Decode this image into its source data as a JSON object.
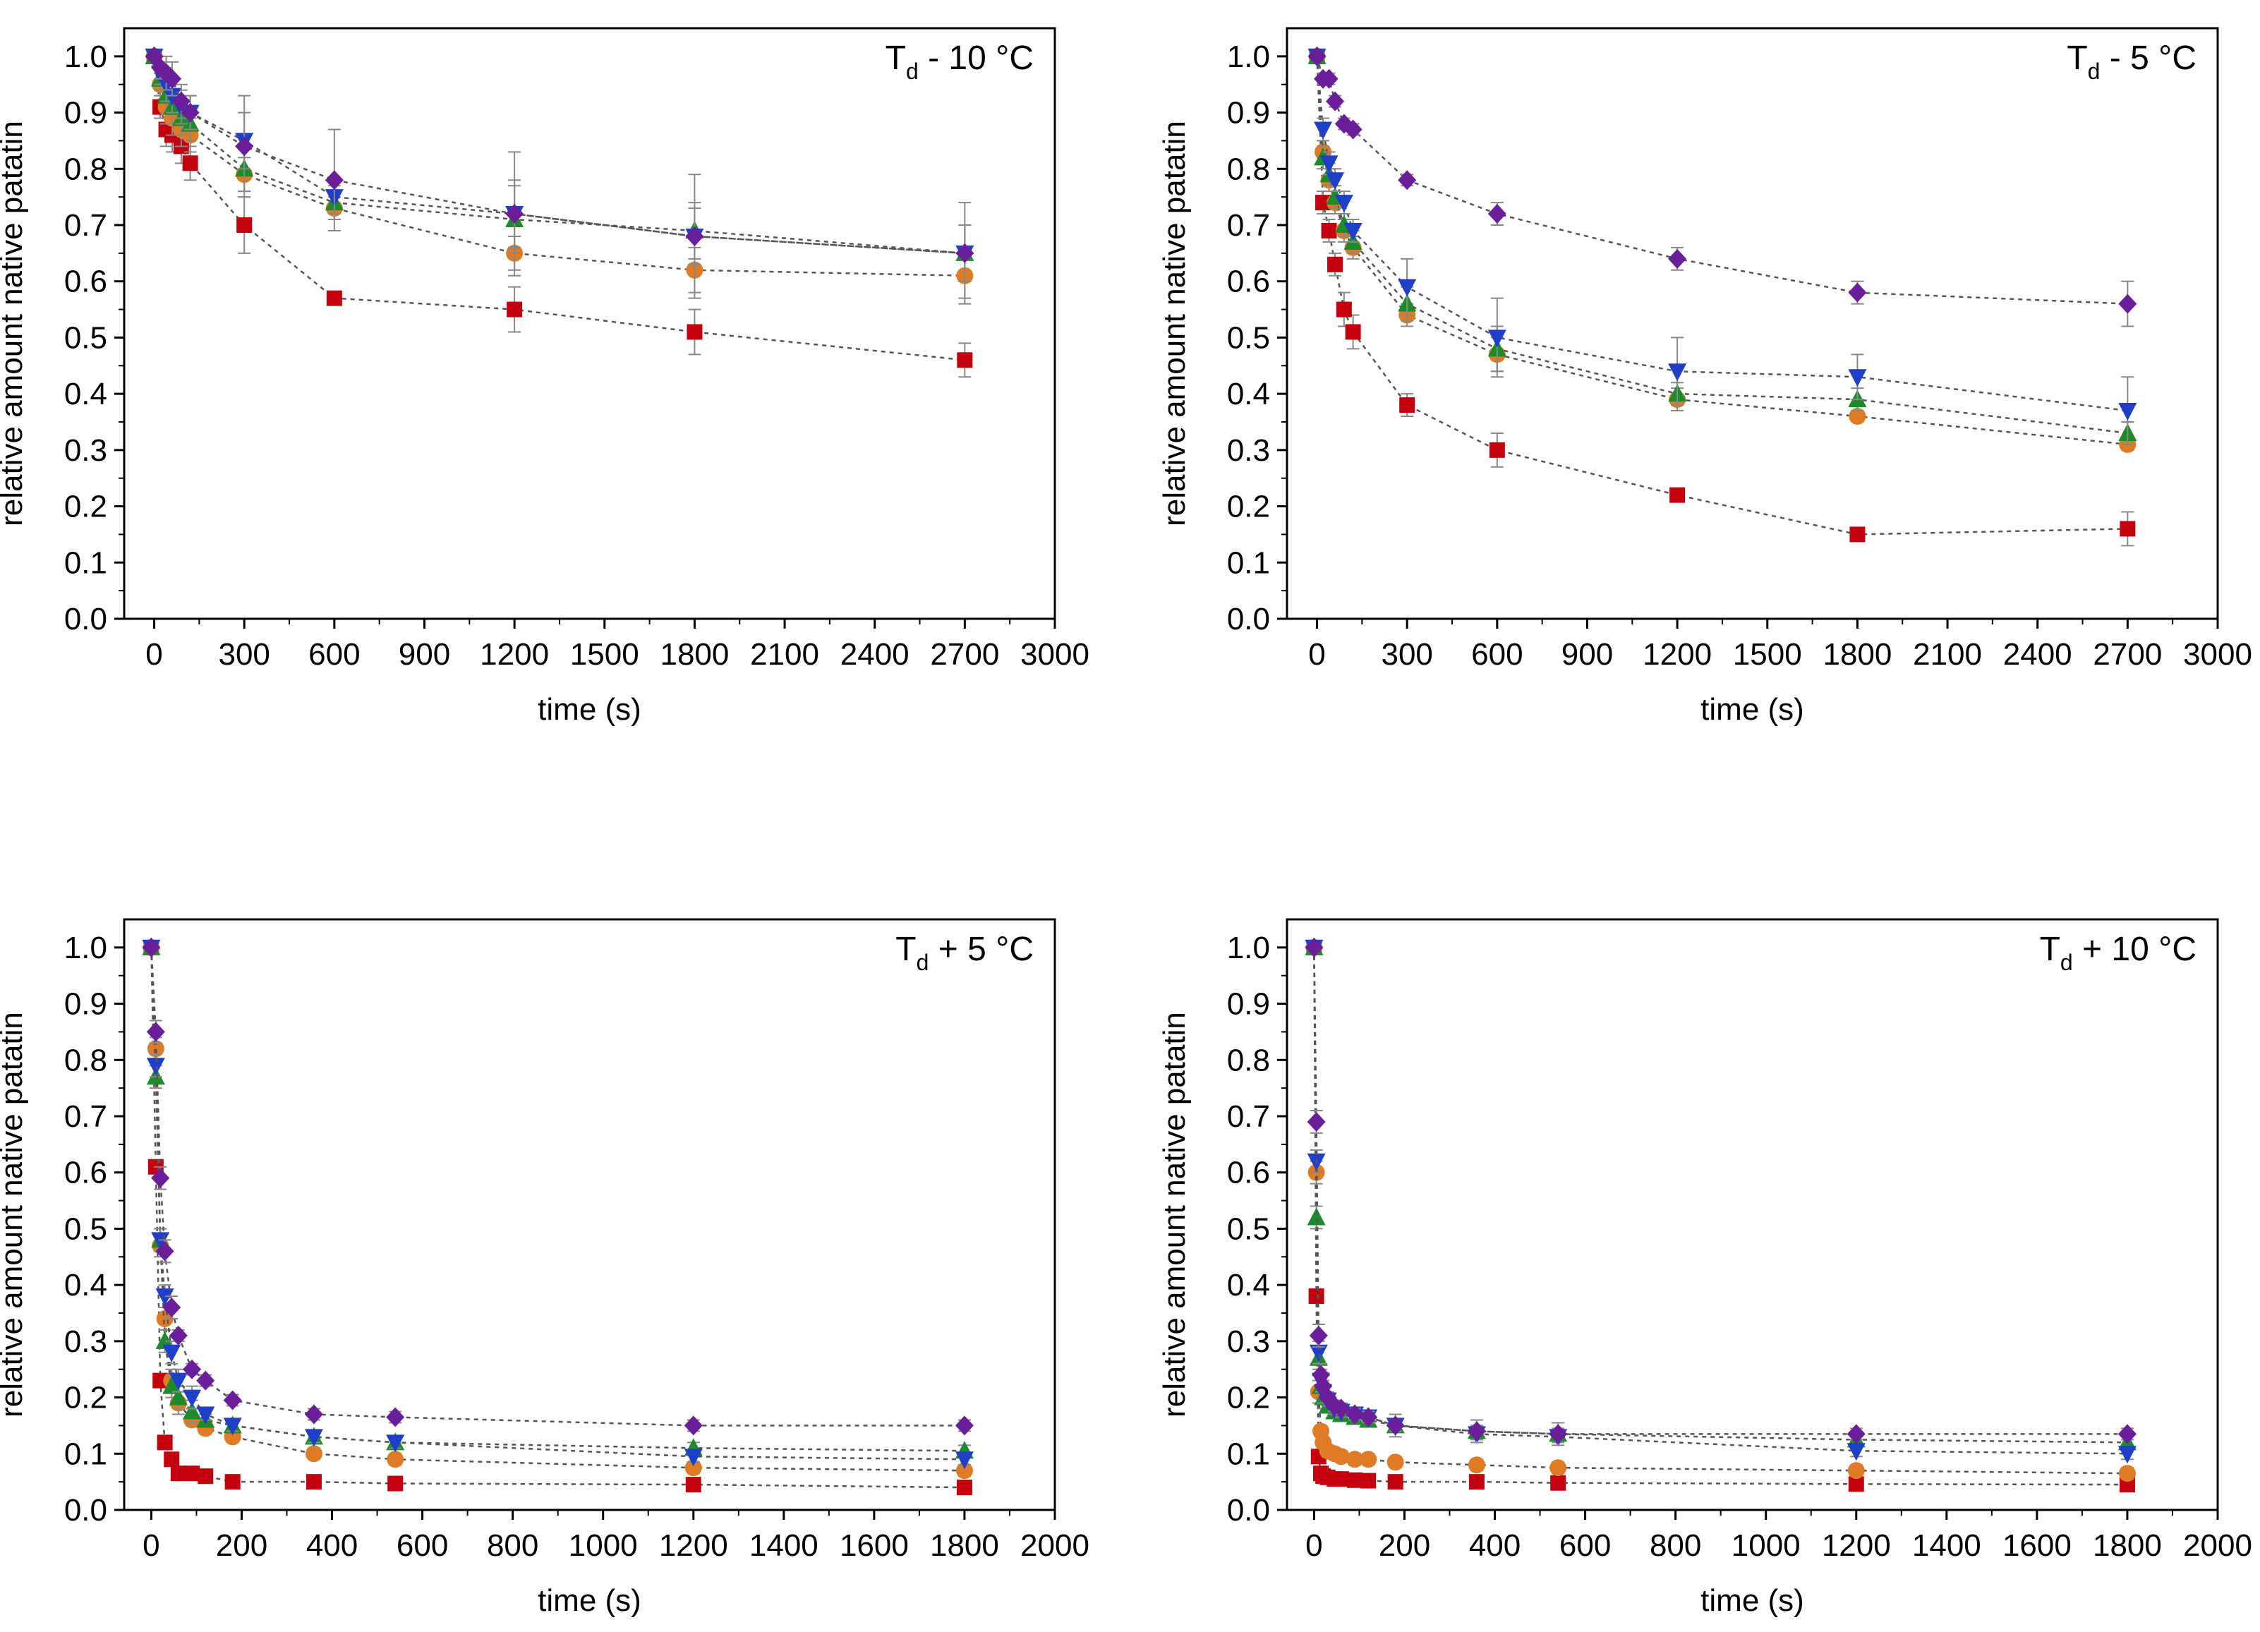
{
  "colors": {
    "red": "#c4000f",
    "orange": "#e07b25",
    "green": "#1d8a2b",
    "blue": "#1f3fc8",
    "purple": "#6a1e9a"
  },
  "chart_data": [
    {
      "type": "scatter",
      "title_main": "T",
      "title_sub": "d",
      "title_rest": " - 10 °C",
      "xlabel": "time (s)",
      "ylabel": "relative amount native patatin",
      "xlim": [
        -100,
        3000
      ],
      "ylim": [
        0,
        1.05
      ],
      "xticks": [
        0,
        300,
        600,
        900,
        1200,
        1500,
        1800,
        2100,
        2400,
        2700,
        3000
      ],
      "xtick_labels": [
        "0",
        "300",
        "600",
        "900",
        "1200",
        "1500",
        "1800",
        "2100",
        "2400",
        "2700",
        "3000"
      ],
      "yticks": [
        0,
        0.1,
        0.2,
        0.3,
        0.4,
        0.5,
        0.6,
        0.7,
        0.8,
        0.9,
        1.0
      ],
      "ytick_labels": [
        "0.0",
        "0.1",
        "0.2",
        "0.3",
        "0.4",
        "0.5",
        "0.6",
        "0.7",
        "0.8",
        "0.9",
        "1.0"
      ],
      "x": [
        0,
        20,
        40,
        60,
        90,
        120,
        300,
        600,
        1200,
        1800,
        2700
      ],
      "series": [
        {
          "color": "red",
          "marker": "square",
          "values": [
            1.0,
            0.91,
            0.87,
            0.86,
            0.84,
            0.81,
            0.7,
            0.57,
            0.55,
            0.51,
            0.46
          ],
          "err": [
            0,
            0.02,
            0.03,
            0.03,
            0.03,
            0.03,
            0.05,
            0.01,
            0.04,
            0.04,
            0.03
          ]
        },
        {
          "color": "orange",
          "marker": "circle",
          "values": [
            1.0,
            0.95,
            0.91,
            0.89,
            0.87,
            0.86,
            0.79,
            0.73,
            0.65,
            0.62,
            0.61
          ],
          "err": [
            0,
            0.02,
            0.03,
            0.03,
            0.03,
            0.03,
            0.03,
            0.02,
            0.03,
            0.04,
            0.04
          ]
        },
        {
          "color": "green",
          "marker": "triangle-up",
          "values": [
            1.0,
            0.96,
            0.93,
            0.91,
            0.89,
            0.88,
            0.8,
            0.74,
            0.71,
            0.69,
            0.65
          ],
          "err": [
            0,
            0.02,
            0.03,
            0.03,
            0.03,
            0.03,
            0.04,
            0.03,
            0.06,
            0.05,
            0.05
          ]
        },
        {
          "color": "blue",
          "marker": "triangle-down",
          "values": [
            1.0,
            0.97,
            0.95,
            0.93,
            0.91,
            0.9,
            0.85,
            0.75,
            0.72,
            0.68,
            0.65
          ],
          "err": [
            0,
            0.02,
            0.03,
            0.03,
            0.03,
            0.03,
            0.05,
            0.03,
            0.06,
            0.05,
            0.05
          ]
        },
        {
          "color": "purple",
          "marker": "diamond",
          "values": [
            1.0,
            0.98,
            0.97,
            0.96,
            0.92,
            0.9,
            0.84,
            0.78,
            0.72,
            0.68,
            0.65
          ],
          "err": [
            0,
            0.02,
            0.03,
            0.03,
            0.03,
            0.03,
            0.09,
            0.09,
            0.11,
            0.11,
            0.09
          ]
        }
      ]
    },
    {
      "type": "scatter",
      "title_main": "T",
      "title_sub": "d",
      "title_rest": " - 5 °C",
      "xlabel": "time (s)",
      "ylabel": "relative amount native patatin",
      "xlim": [
        -100,
        3000
      ],
      "ylim": [
        0,
        1.05
      ],
      "xticks": [
        0,
        300,
        600,
        900,
        1200,
        1500,
        1800,
        2100,
        2400,
        2700,
        3000
      ],
      "xtick_labels": [
        "0",
        "300",
        "600",
        "900",
        "1200",
        "1500",
        "1800",
        "2100",
        "2400",
        "2700",
        "3000"
      ],
      "yticks": [
        0,
        0.1,
        0.2,
        0.3,
        0.4,
        0.5,
        0.6,
        0.7,
        0.8,
        0.9,
        1.0
      ],
      "ytick_labels": [
        "0.0",
        "0.1",
        "0.2",
        "0.3",
        "0.4",
        "0.5",
        "0.6",
        "0.7",
        "0.8",
        "0.9",
        "1.0"
      ],
      "x": [
        0,
        20,
        40,
        60,
        90,
        120,
        300,
        600,
        1200,
        1800,
        2700
      ],
      "series": [
        {
          "color": "red",
          "marker": "square",
          "values": [
            1.0,
            0.74,
            0.69,
            0.63,
            0.55,
            0.51,
            0.38,
            0.3,
            0.22,
            0.15,
            0.16
          ],
          "err": [
            0,
            0.02,
            0.02,
            0.02,
            0.03,
            0.03,
            0.02,
            0.03,
            0.01,
            0.01,
            0.03
          ]
        },
        {
          "color": "orange",
          "marker": "circle",
          "values": [
            1.0,
            0.83,
            0.78,
            0.74,
            0.69,
            0.66,
            0.54,
            0.47,
            0.39,
            0.36,
            0.31
          ],
          "err": [
            0,
            0.02,
            0.02,
            0.02,
            0.02,
            0.02,
            0.02,
            0.03,
            0.02,
            0.01,
            0.01
          ]
        },
        {
          "color": "green",
          "marker": "triangle-up",
          "values": [
            1.0,
            0.82,
            0.79,
            0.75,
            0.7,
            0.67,
            0.56,
            0.48,
            0.4,
            0.39,
            0.33
          ],
          "err": [
            0,
            0.02,
            0.02,
            0.02,
            0.02,
            0.02,
            0.03,
            0.04,
            0.02,
            0.02,
            0.02
          ]
        },
        {
          "color": "blue",
          "marker": "triangle-down",
          "values": [
            1.0,
            0.87,
            0.81,
            0.78,
            0.74,
            0.69,
            0.59,
            0.5,
            0.44,
            0.43,
            0.37
          ],
          "err": [
            0,
            0.02,
            0.02,
            0.02,
            0.02,
            0.02,
            0.05,
            0.07,
            0.06,
            0.04,
            0.06
          ]
        },
        {
          "color": "purple",
          "marker": "diamond",
          "values": [
            1.0,
            0.96,
            0.96,
            0.92,
            0.88,
            0.87,
            0.78,
            0.72,
            0.64,
            0.58,
            0.56
          ],
          "err": [
            0,
            0.01,
            0.01,
            0.01,
            0.01,
            0.01,
            0.01,
            0.02,
            0.02,
            0.02,
            0.04
          ]
        }
      ]
    },
    {
      "type": "scatter",
      "title_main": "T",
      "title_sub": "d",
      "title_rest": " + 5 °C",
      "xlabel": "time (s)",
      "ylabel": "relative amount native patatin",
      "xlim": [
        -60,
        2000
      ],
      "ylim": [
        0,
        1.05
      ],
      "xticks": [
        0,
        200,
        400,
        600,
        800,
        1000,
        1200,
        1400,
        1600,
        1800,
        2000
      ],
      "xtick_labels": [
        "0",
        "200",
        "400",
        "600",
        "800",
        "1000",
        "1200",
        "1400",
        "1600",
        "1800",
        "2000"
      ],
      "yticks": [
        0,
        0.1,
        0.2,
        0.3,
        0.4,
        0.5,
        0.6,
        0.7,
        0.8,
        0.9,
        1.0
      ],
      "ytick_labels": [
        "0.0",
        "0.1",
        "0.2",
        "0.3",
        "0.4",
        "0.5",
        "0.6",
        "0.7",
        "0.8",
        "0.9",
        "1.0"
      ],
      "x": [
        0,
        10,
        20,
        30,
        45,
        60,
        90,
        120,
        180,
        360,
        540,
        1200,
        1800
      ],
      "series": [
        {
          "color": "red",
          "marker": "square",
          "values": [
            1.0,
            0.61,
            0.23,
            0.12,
            0.09,
            0.065,
            0.065,
            0.06,
            0.05,
            0.05,
            0.047,
            0.045,
            0.04
          ],
          "err": [
            0,
            0.01,
            0.01,
            0.01,
            0.01,
            0.005,
            0.005,
            0.005,
            0.005,
            0.005,
            0.005,
            0.005,
            0.005
          ]
        },
        {
          "color": "orange",
          "marker": "circle",
          "values": [
            1.0,
            0.82,
            0.47,
            0.34,
            0.23,
            0.19,
            0.16,
            0.145,
            0.13,
            0.1,
            0.09,
            0.075,
            0.07
          ],
          "err": [
            0,
            0.02,
            0.02,
            0.02,
            0.02,
            0.02,
            0.01,
            0.01,
            0.01,
            0.01,
            0.01,
            0.01,
            0.01
          ]
        },
        {
          "color": "green",
          "marker": "triangle-up",
          "values": [
            1.0,
            0.77,
            0.48,
            0.3,
            0.22,
            0.2,
            0.175,
            0.16,
            0.15,
            0.13,
            0.12,
            0.11,
            0.105
          ],
          "err": [
            0,
            0.02,
            0.02,
            0.02,
            0.02,
            0.02,
            0.02,
            0.01,
            0.01,
            0.01,
            0.01,
            0.01,
            0.01
          ]
        },
        {
          "color": "blue",
          "marker": "triangle-down",
          "values": [
            1.0,
            0.79,
            0.48,
            0.38,
            0.28,
            0.23,
            0.2,
            0.17,
            0.15,
            0.13,
            0.12,
            0.095,
            0.09
          ],
          "err": [
            0,
            0.02,
            0.02,
            0.02,
            0.02,
            0.02,
            0.02,
            0.01,
            0.01,
            0.01,
            0.01,
            0.01,
            0.01
          ]
        },
        {
          "color": "purple",
          "marker": "diamond",
          "values": [
            1.0,
            0.85,
            0.59,
            0.46,
            0.36,
            0.31,
            0.25,
            0.23,
            0.195,
            0.17,
            0.165,
            0.15,
            0.15
          ],
          "err": [
            0,
            0.02,
            0.02,
            0.02,
            0.02,
            0.01,
            0.01,
            0.01,
            0.01,
            0.01,
            0.01,
            0.01,
            0.01
          ]
        }
      ]
    },
    {
      "type": "scatter",
      "title_main": "T",
      "title_sub": "d",
      "title_rest": " + 10 °C",
      "xlabel": "time (s)",
      "ylabel": "relative amount native patatin",
      "xlim": [
        -60,
        2000
      ],
      "ylim": [
        0,
        1.05
      ],
      "xticks": [
        0,
        200,
        400,
        600,
        800,
        1000,
        1200,
        1400,
        1600,
        1800,
        2000
      ],
      "xtick_labels": [
        "0",
        "200",
        "400",
        "600",
        "800",
        "1000",
        "1200",
        "1400",
        "1600",
        "1800",
        "2000"
      ],
      "yticks": [
        0,
        0.1,
        0.2,
        0.3,
        0.4,
        0.5,
        0.6,
        0.7,
        0.8,
        0.9,
        1.0
      ],
      "ytick_labels": [
        "0.0",
        "0.1",
        "0.2",
        "0.3",
        "0.4",
        "0.5",
        "0.6",
        "0.7",
        "0.8",
        "0.9",
        "1.0"
      ],
      "x": [
        0,
        5,
        10,
        15,
        20,
        30,
        45,
        60,
        90,
        120,
        180,
        360,
        540,
        1200,
        1800
      ],
      "series": [
        {
          "color": "red",
          "marker": "square",
          "values": [
            1.0,
            0.38,
            0.095,
            0.065,
            0.06,
            0.058,
            0.055,
            0.055,
            0.053,
            0.052,
            0.05,
            0.05,
            0.048,
            0.046,
            0.045
          ],
          "err": [
            0,
            0.01,
            0.01,
            0.005,
            0.005,
            0.005,
            0.005,
            0.005,
            0.005,
            0.005,
            0.005,
            0.005,
            0.005,
            0.005,
            0.005
          ]
        },
        {
          "color": "orange",
          "marker": "circle",
          "values": [
            1.0,
            0.6,
            0.21,
            0.14,
            0.12,
            0.105,
            0.1,
            0.095,
            0.09,
            0.09,
            0.085,
            0.08,
            0.075,
            0.07,
            0.065
          ],
          "err": [
            0,
            0.02,
            0.02,
            0.01,
            0.01,
            0.01,
            0.01,
            0.01,
            0.01,
            0.01,
            0.01,
            0.01,
            0.01,
            0.01,
            0.01
          ]
        },
        {
          "color": "green",
          "marker": "triangle-up",
          "values": [
            1.0,
            0.52,
            0.27,
            0.22,
            0.2,
            0.185,
            0.175,
            0.17,
            0.165,
            0.16,
            0.15,
            0.14,
            0.135,
            0.125,
            0.12
          ],
          "err": [
            0,
            0.02,
            0.02,
            0.02,
            0.02,
            0.01,
            0.01,
            0.01,
            0.01,
            0.01,
            0.01,
            0.01,
            0.01,
            0.01,
            0.01
          ]
        },
        {
          "color": "blue",
          "marker": "triangle-down",
          "values": [
            1.0,
            0.62,
            0.28,
            0.23,
            0.21,
            0.195,
            0.18,
            0.175,
            0.17,
            0.165,
            0.15,
            0.135,
            0.13,
            0.105,
            0.1
          ],
          "err": [
            0,
            0.02,
            0.02,
            0.02,
            0.02,
            0.01,
            0.01,
            0.01,
            0.01,
            0.01,
            0.01,
            0.01,
            0.01,
            0.01,
            0.01
          ]
        },
        {
          "color": "purple",
          "marker": "diamond",
          "values": [
            1.0,
            0.69,
            0.31,
            0.24,
            0.22,
            0.2,
            0.185,
            0.18,
            0.17,
            0.165,
            0.15,
            0.14,
            0.135,
            0.135,
            0.135
          ],
          "err": [
            0,
            0.02,
            0.02,
            0.02,
            0.02,
            0.01,
            0.01,
            0.01,
            0.01,
            0.01,
            0.02,
            0.02,
            0.02,
            0.01,
            0.01
          ]
        }
      ]
    }
  ]
}
